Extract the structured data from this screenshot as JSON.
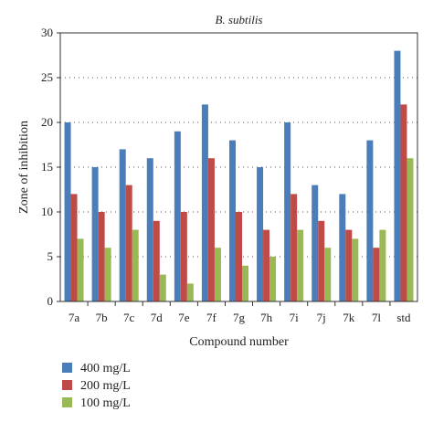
{
  "chart_data": {
    "type": "bar",
    "title": "B. subtilis",
    "xlabel": "Compound number",
    "ylabel": "Zone of inhibition",
    "ylim": [
      0,
      30
    ],
    "yticks": [
      0,
      5,
      10,
      15,
      20,
      25,
      30
    ],
    "grid": "horizontal dotted",
    "legend_position": "bottom",
    "categories": [
      "7a",
      "7b",
      "7c",
      "7d",
      "7e",
      "7f",
      "7g",
      "7h",
      "7i",
      "7j",
      "7k",
      "7l",
      "std"
    ],
    "series": [
      {
        "name": "400 mg/L",
        "color": "#4a7ebb",
        "values": [
          20,
          15,
          17,
          16,
          19,
          22,
          18,
          15,
          20,
          13,
          12,
          18,
          28
        ]
      },
      {
        "name": "200 mg/L",
        "color": "#be4b48",
        "values": [
          12,
          10,
          13,
          9,
          10,
          16,
          10,
          8,
          12,
          9,
          8,
          6,
          22
        ]
      },
      {
        "name": "100 mg/L",
        "color": "#98b954",
        "values": [
          7,
          6,
          8,
          3,
          2,
          6,
          4,
          5,
          8,
          6,
          7,
          8,
          16
        ]
      }
    ]
  }
}
